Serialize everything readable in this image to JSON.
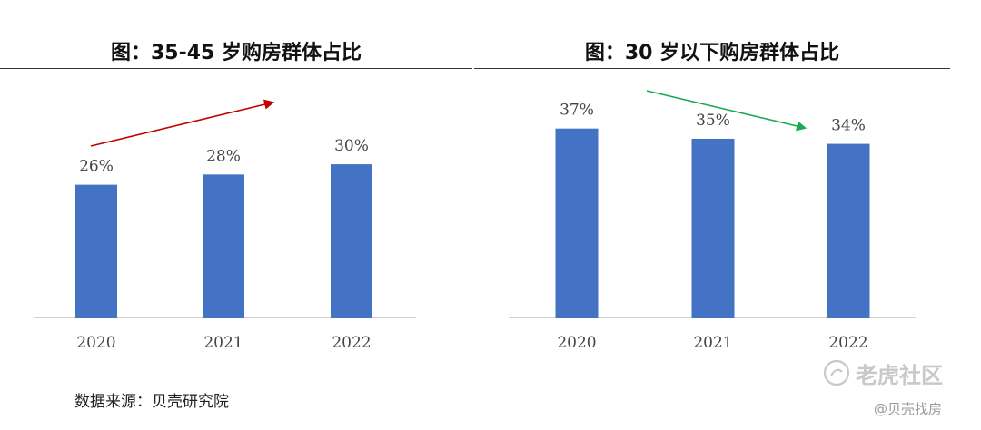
{
  "chart_data": [
    {
      "type": "bar",
      "title": "图：35-45 岁购房群体占比",
      "categories": [
        "2020",
        "2021",
        "2022"
      ],
      "values": [
        26,
        28,
        30
      ],
      "data_labels": [
        "26%",
        "28%",
        "30%"
      ],
      "ylim": [
        0,
        40
      ],
      "grid": false,
      "bar_color": "#4472c4",
      "trend_arrow": {
        "direction": "up",
        "color": "#c00000"
      }
    },
    {
      "type": "bar",
      "title": "图：30 岁以下购房群体占比",
      "categories": [
        "2020",
        "2021",
        "2022"
      ],
      "values": [
        37,
        35,
        34
      ],
      "data_labels": [
        "37%",
        "35%",
        "34%"
      ],
      "ylim": [
        0,
        40
      ],
      "grid": false,
      "bar_color": "#4472c4",
      "trend_arrow": {
        "direction": "down",
        "color": "#1aaa55"
      }
    }
  ],
  "source": "数据来源：贝壳研究院",
  "watermark": {
    "main": "老虎社区",
    "sub": "@贝壳找房",
    "icon": "tiger-logo-icon"
  }
}
